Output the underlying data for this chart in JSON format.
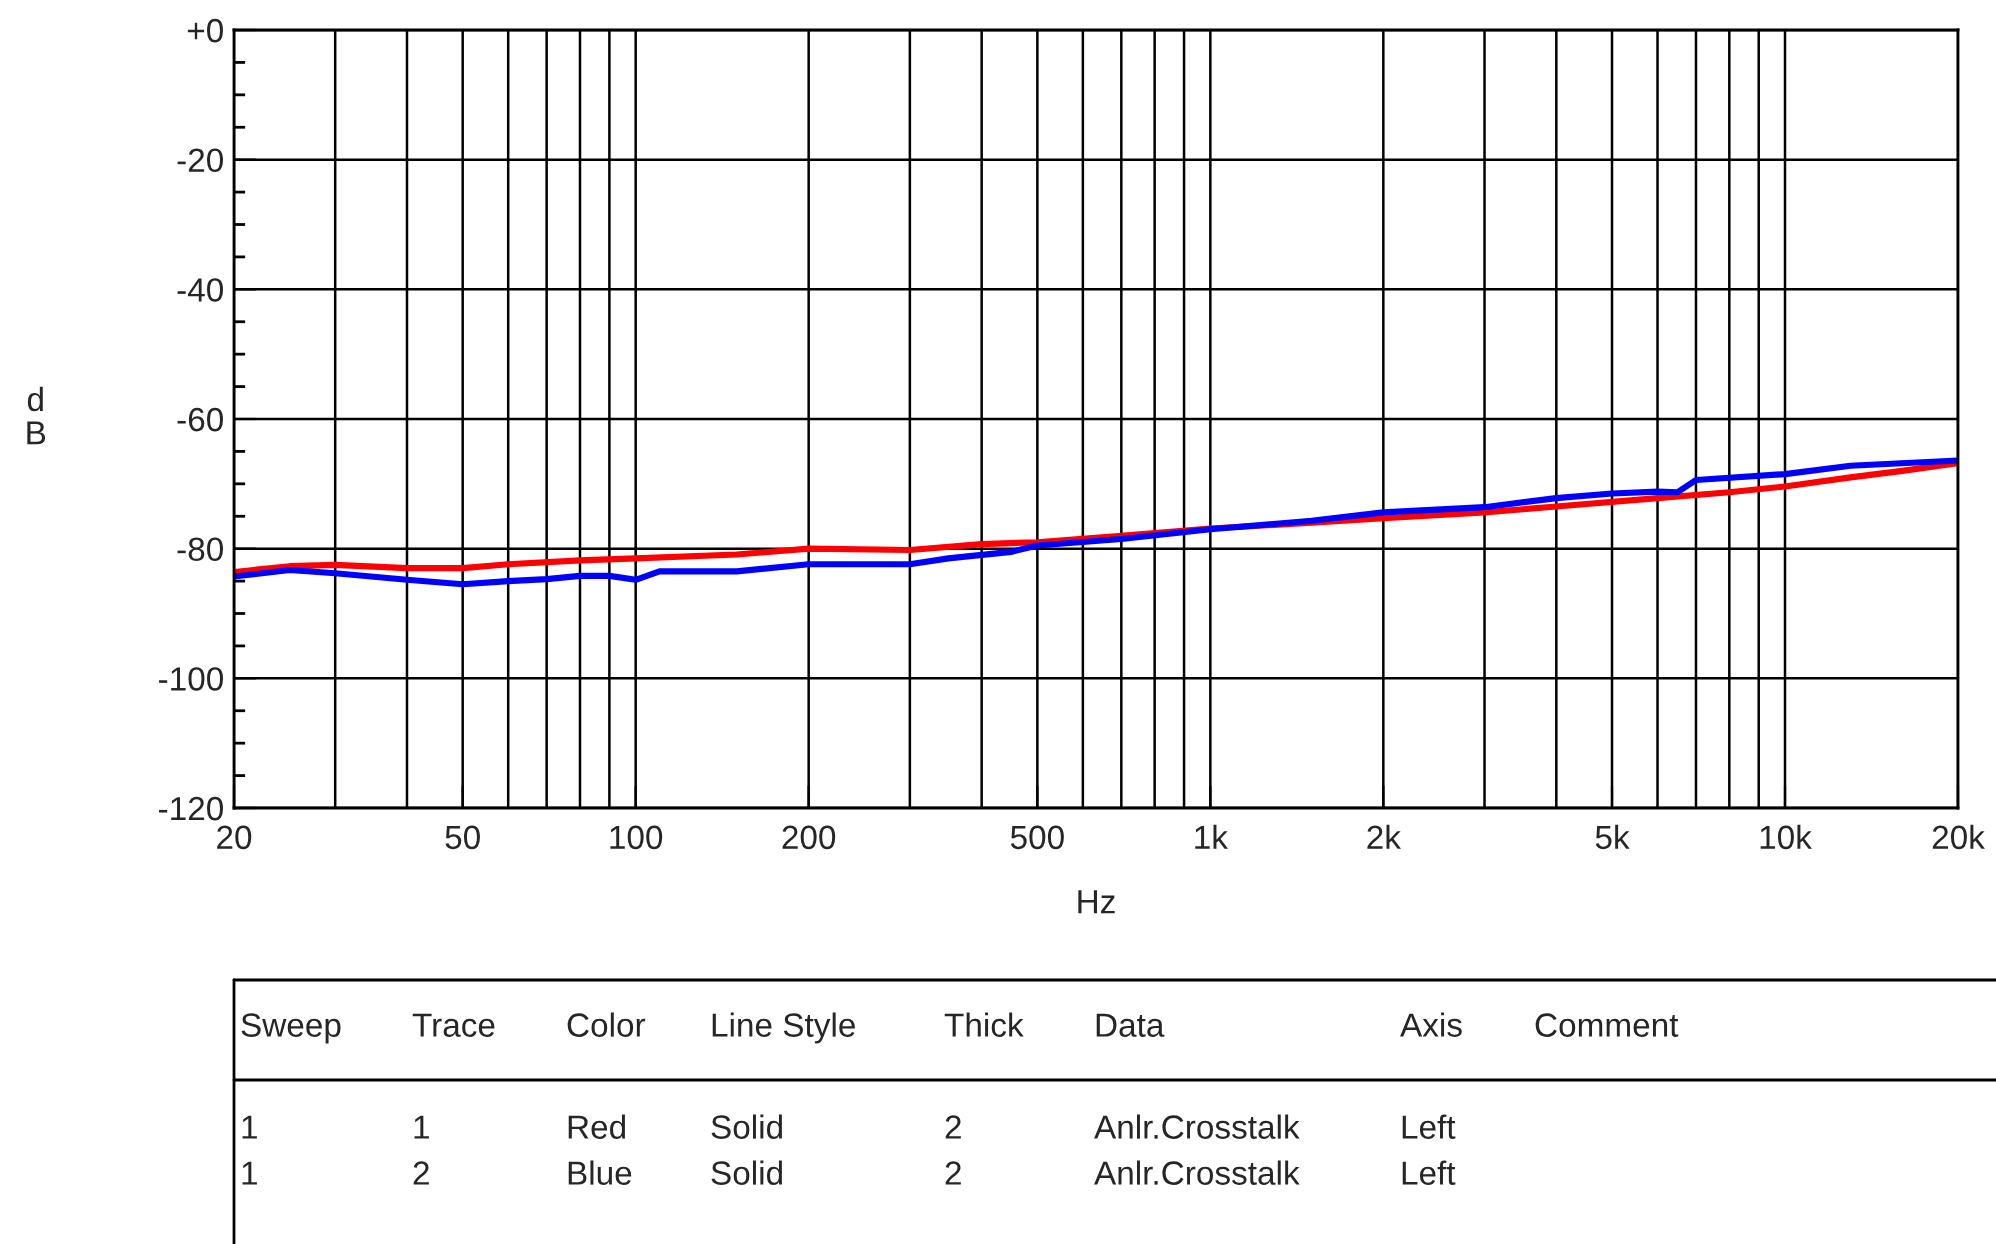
{
  "chart_data": {
    "type": "line",
    "xlabel": "Hz",
    "ylabel": "dB",
    "log": "x",
    "xlim": [
      20,
      20000
    ],
    "ylim": [
      -120,
      0
    ],
    "xticks": [
      20,
      {
        "value": 30,
        "label": null
      },
      {
        "value": 40,
        "label": null
      },
      50,
      {
        "value": 60,
        "label": null
      },
      {
        "value": 70,
        "label": null
      },
      {
        "value": 80,
        "label": null
      },
      {
        "value": 90,
        "label": null
      },
      100,
      200,
      {
        "value": 300,
        "label": null
      },
      {
        "value": 400,
        "label": null
      },
      500,
      {
        "value": 600,
        "label": null
      },
      {
        "value": 700,
        "label": null
      },
      {
        "value": 800,
        "label": null
      },
      {
        "value": 900,
        "label": null
      },
      {
        "value": 1000,
        "label": "1k"
      },
      {
        "value": 2000,
        "label": "2k"
      },
      {
        "value": 3000,
        "label": null
      },
      {
        "value": 4000,
        "label": null
      },
      {
        "value": 5000,
        "label": "5k"
      },
      {
        "value": 6000,
        "label": null
      },
      {
        "value": 7000,
        "label": null
      },
      {
        "value": 8000,
        "label": null
      },
      {
        "value": 9000,
        "label": null
      },
      {
        "value": 10000,
        "label": "10k"
      },
      {
        "value": 20000,
        "label": "20k"
      }
    ],
    "yticks": [
      -120,
      {
        "value": -115,
        "label": null
      },
      {
        "value": -110,
        "label": null
      },
      {
        "value": -105,
        "label": null
      },
      -100,
      {
        "value": -95,
        "label": null
      },
      {
        "value": -90,
        "label": null
      },
      {
        "value": -85,
        "label": null
      },
      -80,
      {
        "value": -75,
        "label": null
      },
      {
        "value": -70,
        "label": null
      },
      {
        "value": -65,
        "label": null
      },
      -60,
      {
        "value": -55,
        "label": null
      },
      {
        "value": -50,
        "label": null
      },
      {
        "value": -45,
        "label": null
      },
      -40,
      {
        "value": -35,
        "label": null
      },
      {
        "value": -30,
        "label": null
      },
      {
        "value": -25,
        "label": null
      },
      -20,
      {
        "value": -15,
        "label": null
      },
      {
        "value": -10,
        "label": null
      },
      {
        "value": -5,
        "label": null
      },
      {
        "value": 0,
        "label": "+0"
      }
    ],
    "grid": true,
    "marker": "none",
    "line_style": "solid",
    "series": [
      {
        "color": "#ff0000",
        "x": [
          20,
          25,
          30,
          40,
          50,
          60,
          80,
          100,
          150,
          200,
          300,
          400,
          500,
          700,
          1000,
          1500,
          2000,
          3000,
          4000,
          6000,
          8000,
          10000,
          13000,
          16000,
          20000
        ],
        "values": [
          -83.6,
          -82.7,
          -82.5,
          -83,
          -83,
          -82.4,
          -81.8,
          -81.5,
          -80.9,
          -80,
          -80.2,
          -79.3,
          -79,
          -78,
          -76.9,
          -76,
          -75.3,
          -74.4,
          -73.5,
          -72.2,
          -71.3,
          -70.4,
          -69,
          -68,
          -66.8
        ]
      },
      {
        "color": "#0000ff",
        "x": [
          20,
          25,
          30,
          40,
          50,
          60,
          70,
          80,
          90,
          100,
          110,
          150,
          200,
          300,
          350,
          450,
          500,
          700,
          1000,
          1500,
          2000,
          3000,
          4000,
          5000,
          6000,
          6500,
          7000,
          10000,
          13000,
          20000
        ],
        "values": [
          -84.3,
          -83.3,
          -83.8,
          -84.8,
          -85.5,
          -85,
          -84.7,
          -84.2,
          -84.2,
          -84.8,
          -83.5,
          -83.5,
          -82.4,
          -82.4,
          -81.5,
          -80.5,
          -79.5,
          -78.5,
          -77,
          -75.7,
          -74.4,
          -73.6,
          -72.2,
          -71.5,
          -71.2,
          -71.3,
          -69.4,
          -68.5,
          -67.2,
          -66.4
        ]
      }
    ],
    "annotations": [
      "Sweep",
      "Trace",
      "Color",
      "Line Style",
      "Thick",
      "Data",
      "Axis",
      "Comment",
      "1",
      "1",
      "Red",
      "Solid",
      "2",
      "Anlr.Crosstalk",
      "Left",
      "1",
      "2",
      "Blue",
      "Solid",
      "2",
      "Anlr.Crosstalk",
      "Left"
    ]
  }
}
